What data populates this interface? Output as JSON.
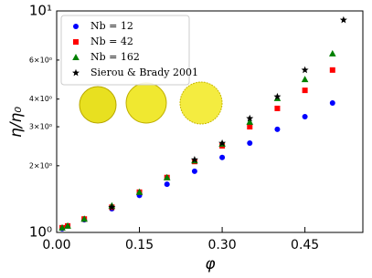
{
  "chart_data": {
    "type": "scatter",
    "xlabel": "φ",
    "ylabel": "η/η₀",
    "xlim": [
      0,
      0.555
    ],
    "ylim": [
      1,
      10
    ],
    "log_y": true,
    "xticks": [
      {
        "value": 0,
        "label": "0.00"
      },
      {
        "value": 0.15,
        "label": "0.15"
      },
      {
        "value": 0.3,
        "label": "0.30"
      },
      {
        "value": 0.45,
        "label": "0.45"
      }
    ],
    "yticks": [
      {
        "value": 1,
        "label": "10⁰"
      },
      {
        "value": 2,
        "label": "2×10⁰"
      },
      {
        "value": 3,
        "label": "3×10⁰"
      },
      {
        "value": 4,
        "label": "4×10⁰"
      },
      {
        "value": 6,
        "label": "6×10⁰"
      },
      {
        "value": 10,
        "label": "10¹"
      }
    ],
    "legend": "upper left",
    "series": [
      {
        "name": "Nb = 12",
        "color": "#0000ff",
        "marker": "circle",
        "x": [
          0.01,
          0.02,
          0.05,
          0.1,
          0.15,
          0.2,
          0.25,
          0.3,
          0.35,
          0.4,
          0.45,
          0.5
        ],
        "values": [
          1.04,
          1.07,
          1.14,
          1.28,
          1.47,
          1.65,
          1.89,
          2.18,
          2.53,
          2.92,
          3.33,
          3.84
        ]
      },
      {
        "name": "Nb = 42",
        "color": "#ff0000",
        "marker": "square",
        "x": [
          0.01,
          0.02,
          0.05,
          0.1,
          0.15,
          0.2,
          0.25,
          0.3,
          0.35,
          0.4,
          0.45,
          0.5
        ],
        "values": [
          1.05,
          1.07,
          1.15,
          1.3,
          1.52,
          1.77,
          2.09,
          2.46,
          3.0,
          3.63,
          4.38,
          5.41
        ]
      },
      {
        "name": "Nb = 162",
        "color": "#008000",
        "marker": "triangle",
        "x": [
          0.01,
          0.02,
          0.05,
          0.1,
          0.15,
          0.2,
          0.25,
          0.3,
          0.35,
          0.4,
          0.45,
          0.5
        ],
        "values": [
          1.05,
          1.07,
          1.15,
          1.32,
          1.52,
          1.77,
          2.11,
          2.51,
          3.15,
          4.03,
          4.91,
          6.41
        ]
      },
      {
        "name": "Sierou & Brady 2001",
        "color": "#000000",
        "marker": "star",
        "x": [
          0.1,
          0.25,
          0.3,
          0.35,
          0.4,
          0.45,
          0.52
        ],
        "values": [
          1.3,
          2.13,
          2.53,
          3.27,
          4.1,
          5.41,
          9.1
        ]
      }
    ]
  }
}
